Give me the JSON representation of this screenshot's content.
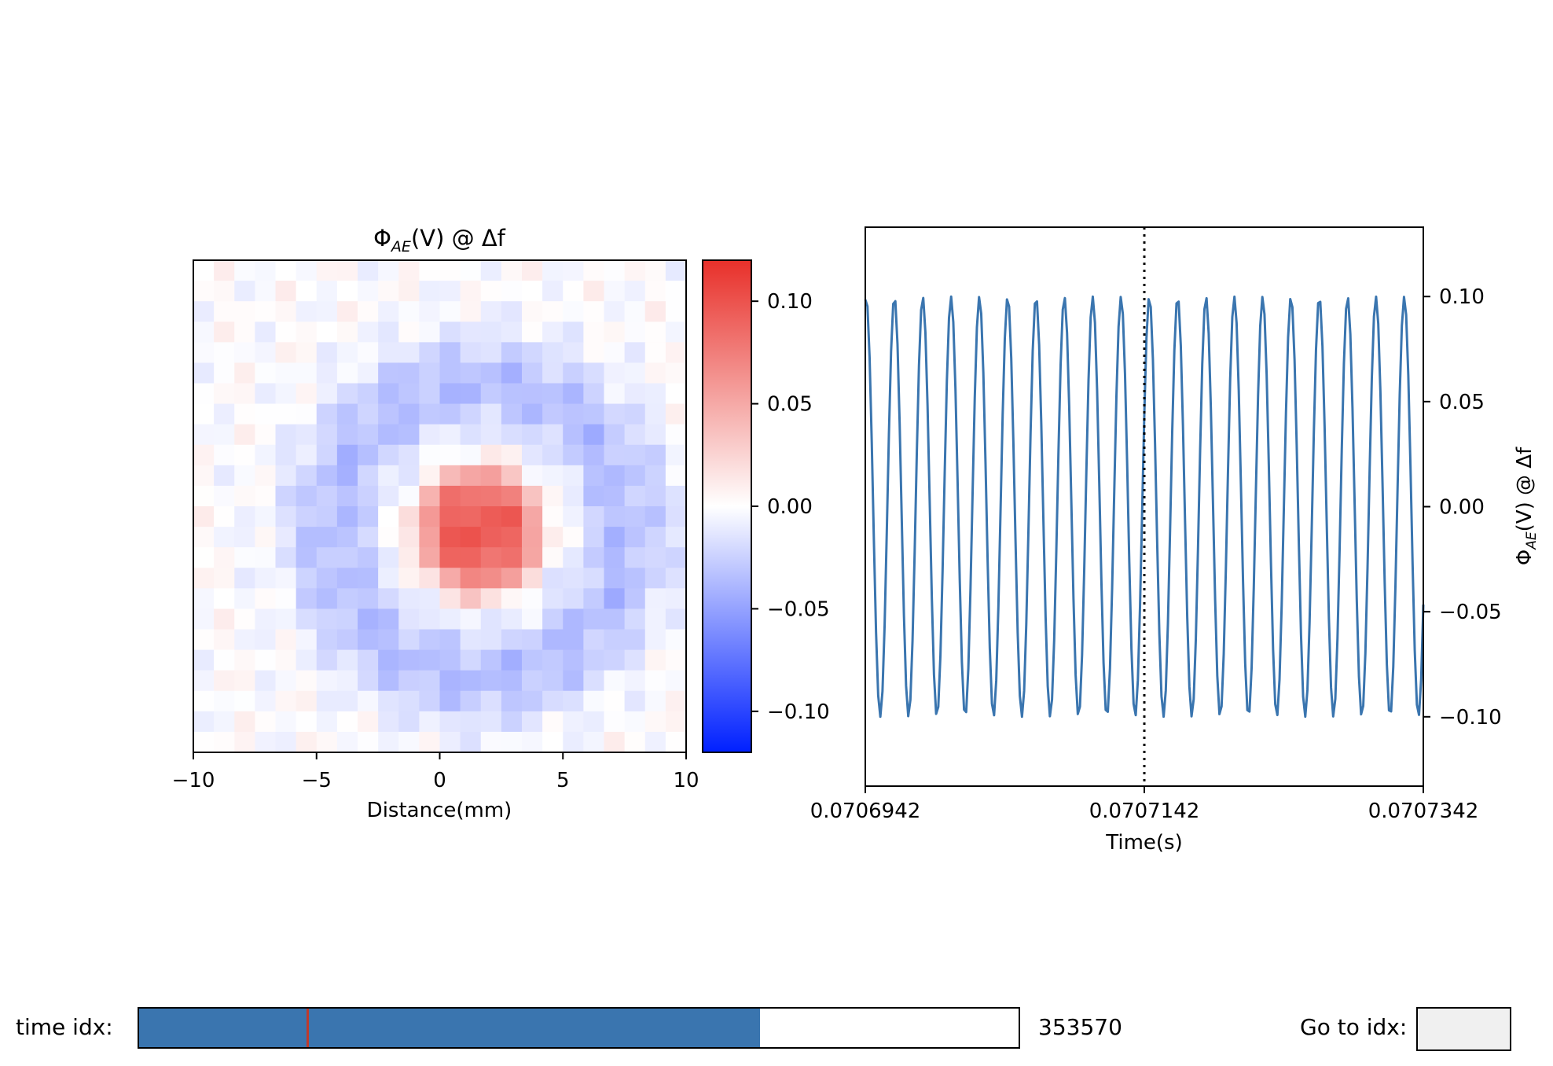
{
  "chart_data": [
    {
      "type": "heatmap",
      "title_main": "Φ",
      "title_sub": "AE",
      "title_rest": "(V) @ Δf",
      "xlabel": "Distance(mm)",
      "xticks": [
        "−10",
        "−5",
        "0",
        "5",
        "10"
      ],
      "xtick_values": [
        -10,
        -5,
        0,
        5,
        10
      ],
      "extent": [
        -10,
        10,
        -10,
        10
      ],
      "grid": [
        24,
        24
      ],
      "colormap": [
        "#0020ff",
        "#ffffff",
        "#e8302a"
      ],
      "colorbar": {
        "range": [
          -0.12,
          0.12
        ],
        "ticks": [
          "0.10",
          "0.05",
          "0.00",
          "−0.05",
          "−0.10"
        ],
        "tick_values": [
          0.1,
          0.05,
          0.0,
          -0.05,
          -0.1
        ]
      },
      "features": {
        "center_mm": [
          1.6,
          -1.0
        ],
        "peak": 0.095,
        "ring_radius_mm": 6.0,
        "ring_min": -0.035
      }
    },
    {
      "type": "line",
      "xlabel": "Time(s)",
      "ylabel_main": "Φ",
      "ylabel_sub": "AE",
      "ylabel_rest": "(V) @ Δf",
      "xticks": [
        "0.0706942",
        "0.0707142",
        "0.0707342"
      ],
      "xtick_values": [
        0.0706942,
        0.0707142,
        0.0707342
      ],
      "yticks": [
        "0.10",
        "0.05",
        "0.00",
        "−0.05",
        "−0.10"
      ],
      "ytick_values": [
        0.1,
        0.05,
        0.0,
        -0.05,
        -0.1
      ],
      "xlim": [
        0.0706942,
        0.0707342
      ],
      "ylim": [
        -0.133,
        0.133
      ],
      "series": [
        {
          "color": "#3a75af",
          "amplitude": 0.1,
          "cycles": 19.7,
          "phase": 1.4
        }
      ],
      "vline": {
        "x": 0.0707142,
        "style": "dotted",
        "color": "#000000"
      }
    }
  ],
  "controls": {
    "slider_label": "time idx:",
    "slider_value": "353570",
    "slider_fraction": 0.706,
    "marker_fraction": 0.19,
    "goto_label": "Go to idx:",
    "goto_value": ""
  },
  "colors": {
    "slider_fill": "#3a75af",
    "slider_marker": "#c0392b"
  }
}
